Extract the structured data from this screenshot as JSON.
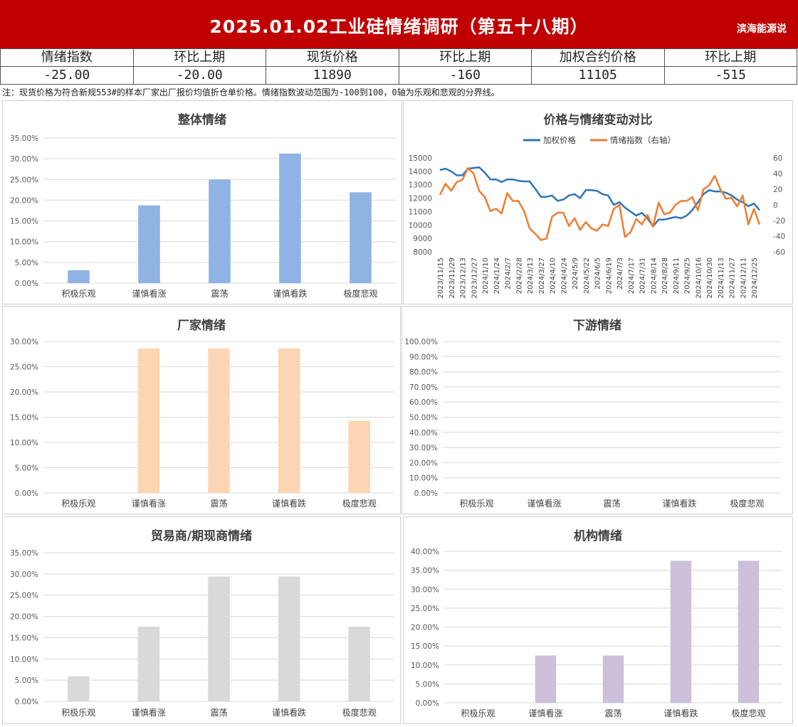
{
  "header": {
    "title": "2025.01.02工业硅情绪调研（第五十八期）",
    "brand": "滨海能源说"
  },
  "summary": {
    "labels": [
      "情绪指数",
      "环比上期",
      "现货价格",
      "环比上期",
      "加权合约价格",
      "环比上期"
    ],
    "values": [
      "-25.00",
      "-20.00",
      "11890",
      "-160",
      "11105",
      "-515"
    ]
  },
  "note": "注：现货价格为符合新规553#的样本厂家出厂报价均值折仓单价格。情绪指数波动范围为-100到100，0轴为乐观和悲观的分界线。",
  "colors": {
    "header_bg": "#c00000",
    "overall": "#8fb4e3",
    "producer": "#fcd5b4",
    "downstream": "#8fb4e3",
    "trader": "#d9d9d9",
    "institution": "#ccc0da",
    "price_line": "#2e75b6",
    "sentiment_line": "#ed7d31"
  },
  "chart_data": [
    {
      "id": "overall",
      "type": "bar",
      "title": "整体情绪",
      "categories": [
        "积极乐观",
        "谨慎看涨",
        "震荡",
        "谨慎看跌",
        "极度悲观"
      ],
      "values": [
        3.1,
        18.75,
        25.0,
        31.25,
        21.9
      ],
      "ylim": [
        0,
        35
      ],
      "yticks": [
        "0.00%",
        "5.00%",
        "10.00%",
        "15.00%",
        "20.00%",
        "25.00%",
        "30.00%",
        "35.00%"
      ],
      "color": "#8fb4e3",
      "grid": true
    },
    {
      "id": "price_vs_sentiment",
      "type": "line",
      "title": "价格与情绪变动对比",
      "legend_position": "top",
      "x": [
        "2023/11/15",
        "2023/11/22",
        "2023/11/29",
        "2023/12/6",
        "2023/12/13",
        "2023/12/20",
        "2023/12/27",
        "2024/1/3",
        "2024/1/10",
        "2024/1/17",
        "2024/1/24",
        "2024/1/31",
        "2024/2/7",
        "2024/2/21",
        "2024/2/28",
        "2024/3/6",
        "2024/3/13",
        "2024/3/20",
        "2024/3/27",
        "2024/4/3",
        "2024/4/10",
        "2024/4/17",
        "2024/4/24",
        "2024/5/1",
        "2024/5/9",
        "2024/5/15",
        "2024/5/22",
        "2024/5/29",
        "2024/6/5",
        "2024/6/12",
        "2024/6/19",
        "2024/6/26",
        "2024/7/3",
        "2024/7/10",
        "2024/7/17",
        "2024/7/24",
        "2024/7/31",
        "2024/8/7",
        "2024/8/14",
        "2024/8/21",
        "2024/8/28",
        "2024/9/4",
        "2024/9/11",
        "2024/9/18",
        "2024/9/25",
        "2024/10/9",
        "2024/10/16",
        "2024/10/23",
        "2024/10/30",
        "2024/11/6",
        "2024/11/13",
        "2024/11/20",
        "2024/11/27",
        "2024/12/4",
        "2024/12/11",
        "2024/12/18",
        "2024/12/25",
        "2025/1/2"
      ],
      "x_tick_labels": [
        "2023/11/15",
        "2023/11/29",
        "2023/12/13",
        "2023/12/27",
        "2024/1/10",
        "2024/1/24",
        "2024/2/7",
        "2024/2/28",
        "2024/3/13",
        "2024/3/27",
        "2024/4/10",
        "2024/4/24",
        "2024/5/9",
        "2024/5/22",
        "2024/6/5",
        "2024/6/19",
        "2024/7/3",
        "2024/7/17",
        "2024/7/31",
        "2024/8/14",
        "2024/8/28",
        "2024/9/11",
        "2024/9/25",
        "2024/10/16",
        "2024/10/30",
        "2024/11/13",
        "2024/11/27",
        "2024/12/11",
        "2024/12/25"
      ],
      "series": [
        {
          "name": "加权价格",
          "axis": "left",
          "color": "#2e75b6",
          "values": [
            14100,
            14200,
            14000,
            13700,
            13700,
            14200,
            14250,
            14300,
            13900,
            13400,
            13400,
            13200,
            13400,
            13400,
            13300,
            13250,
            13250,
            12700,
            12100,
            12100,
            12200,
            11800,
            11900,
            12200,
            12300,
            12000,
            12600,
            12600,
            12550,
            12300,
            12200,
            11500,
            11700,
            11300,
            11000,
            10700,
            10900,
            10500,
            9900,
            10400,
            10400,
            10500,
            10600,
            10500,
            10700,
            11100,
            11700,
            12300,
            12600,
            12500,
            12500,
            12400,
            12200,
            11900,
            11700,
            11400,
            11600,
            11105
          ]
        },
        {
          "name": "情绪指数（右轴）",
          "axis": "right",
          "color": "#ed7d31",
          "values": [
            13,
            27,
            18,
            29,
            32,
            47,
            40,
            18,
            10,
            -8,
            -5,
            -11,
            15,
            5,
            5,
            -8,
            -30,
            -37,
            -45,
            -43,
            -15,
            -10,
            -10,
            -27,
            -17,
            -32,
            -22,
            -30,
            -33,
            -25,
            -27,
            -5,
            0,
            -41,
            -35,
            -18,
            -25,
            -13,
            -28,
            3,
            -12,
            -10,
            0,
            5,
            5,
            10,
            -7,
            20,
            25,
            37,
            20,
            8,
            9,
            -2,
            12,
            -25,
            -5,
            -25
          ]
        }
      ],
      "y_left": {
        "ylim": [
          8000,
          15000
        ],
        "ticks": [
          "8000",
          "9000",
          "10000",
          "11000",
          "12000",
          "13000",
          "14000",
          "15000"
        ]
      },
      "y_right": {
        "ylim": [
          -60,
          60
        ],
        "ticks": [
          "-60",
          "-40",
          "-20",
          "0",
          "20",
          "40",
          "60"
        ]
      }
    },
    {
      "id": "producer",
      "type": "bar",
      "title": "厂家情绪",
      "categories": [
        "积极乐观",
        "谨慎看涨",
        "震荡",
        "谨慎看跌",
        "极度悲观"
      ],
      "values": [
        0,
        28.6,
        28.6,
        28.6,
        14.3
      ],
      "ylim": [
        0,
        30
      ],
      "yticks": [
        "0.00%",
        "5.00%",
        "10.00%",
        "15.00%",
        "20.00%",
        "25.00%",
        "30.00%"
      ],
      "color": "#fcd5b4",
      "grid": true
    },
    {
      "id": "downstream",
      "type": "bar",
      "title": "下游情绪",
      "categories": [
        "积极乐观",
        "谨慎看涨",
        "震荡",
        "谨慎看跌",
        "极度悲观"
      ],
      "values": [
        0,
        0,
        0,
        0,
        0
      ],
      "ylim": [
        0,
        100
      ],
      "yticks": [
        "0.00%",
        "10.00%",
        "20.00%",
        "30.00%",
        "40.00%",
        "50.00%",
        "60.00%",
        "70.00%",
        "80.00%",
        "90.00%",
        "100.00%"
      ],
      "color": "#8fb4e3",
      "grid": true
    },
    {
      "id": "trader",
      "type": "bar",
      "title": "贸易商/期现商情绪",
      "categories": [
        "积极乐观",
        "谨慎看涨",
        "震荡",
        "谨慎看跌",
        "极度悲观"
      ],
      "values": [
        5.9,
        17.6,
        29.4,
        29.4,
        17.6
      ],
      "ylim": [
        0,
        35
      ],
      "yticks": [
        "0.00%",
        "5.00%",
        "10.00%",
        "15.00%",
        "20.00%",
        "25.00%",
        "30.00%",
        "35.00%"
      ],
      "color": "#d9d9d9",
      "grid": true
    },
    {
      "id": "institution",
      "type": "bar",
      "title": "机构情绪",
      "categories": [
        "积极乐观",
        "谨慎看涨",
        "震荡",
        "谨慎看跌",
        "极度悲观"
      ],
      "values": [
        0,
        12.5,
        12.5,
        37.5,
        37.5
      ],
      "ylim": [
        0,
        40
      ],
      "yticks": [
        "0.00%",
        "5.00%",
        "10.00%",
        "15.00%",
        "20.00%",
        "25.00%",
        "30.00%",
        "35.00%",
        "40.00%"
      ],
      "color": "#ccc0da",
      "grid": true
    }
  ]
}
